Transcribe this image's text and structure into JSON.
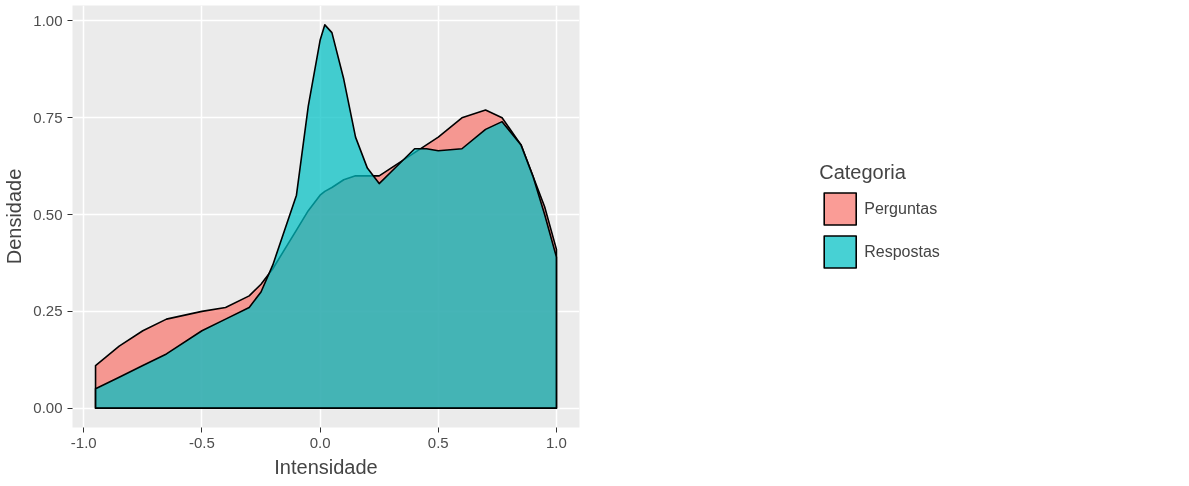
{
  "chart_data": {
    "type": "area",
    "xlabel": "Intensidade",
    "ylabel": "Densidade",
    "legend_title": "Categoria",
    "x": [
      -0.95,
      -0.85,
      -0.75,
      -0.65,
      -0.5,
      -0.4,
      -0.3,
      -0.25,
      -0.2,
      -0.1,
      -0.05,
      0.0,
      0.02,
      0.05,
      0.1,
      0.15,
      0.2,
      0.25,
      0.3,
      0.4,
      0.45,
      0.5,
      0.6,
      0.7,
      0.77,
      0.85,
      0.9,
      0.95,
      1.0
    ],
    "series": [
      {
        "name": "Perguntas",
        "color": "#f8766d",
        "values": [
          0.11,
          0.16,
          0.2,
          0.23,
          0.25,
          0.26,
          0.29,
          0.32,
          0.36,
          0.46,
          0.51,
          0.55,
          0.56,
          0.57,
          0.59,
          0.6,
          0.6,
          0.6,
          0.62,
          0.66,
          0.68,
          0.7,
          0.75,
          0.77,
          0.75,
          0.68,
          0.6,
          0.52,
          0.41
        ]
      },
      {
        "name": "Respostas",
        "color": "#00bfc4",
        "values": [
          0.05,
          0.08,
          0.11,
          0.14,
          0.2,
          0.23,
          0.26,
          0.3,
          0.37,
          0.55,
          0.78,
          0.95,
          0.99,
          0.97,
          0.85,
          0.7,
          0.62,
          0.58,
          0.61,
          0.67,
          0.67,
          0.665,
          0.67,
          0.72,
          0.74,
          0.68,
          0.6,
          0.5,
          0.39
        ]
      }
    ],
    "xlim": [
      -1.0475,
      1.0975
    ],
    "ylim": [
      -0.05,
      1.04
    ],
    "xticks": [
      {
        "value": -1,
        "label": "-1.0"
      },
      {
        "value": -0.5,
        "label": "-0.5"
      },
      {
        "value": 0,
        "label": "0.0"
      },
      {
        "value": 0.5,
        "label": "0.5"
      },
      {
        "value": 1,
        "label": "1.0"
      }
    ],
    "yticks": [
      {
        "value": 0,
        "label": "0.00"
      },
      {
        "value": 0.25,
        "label": "0.25"
      },
      {
        "value": 0.5,
        "label": "0.50"
      },
      {
        "value": 0.75,
        "label": "0.75"
      },
      {
        "value": 1,
        "label": "1.00"
      }
    ],
    "grid": true,
    "legend": "right"
  }
}
